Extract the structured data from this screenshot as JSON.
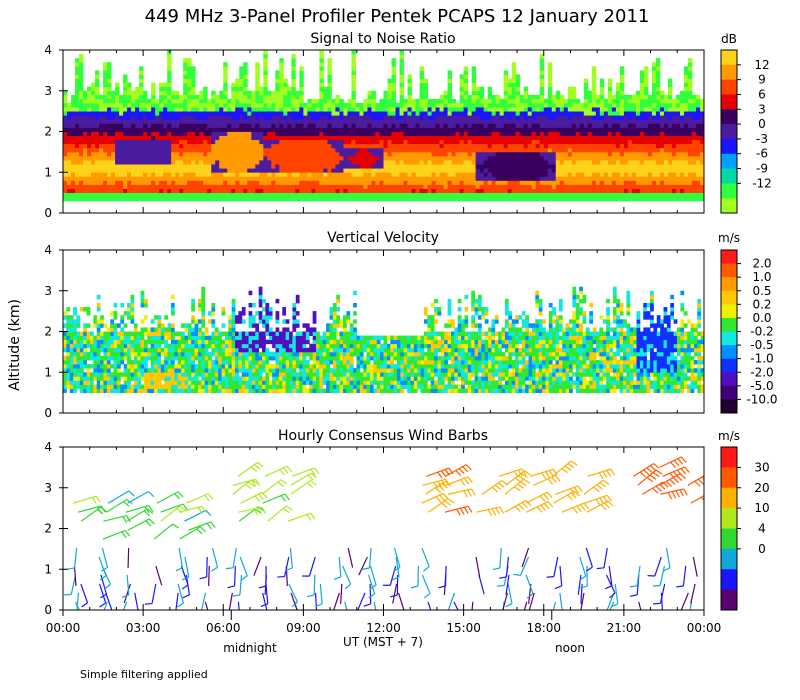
{
  "figure": {
    "title": "449 MHz 3-Panel Profiler Pentek PCAPS 12 January 2011",
    "ylabel": "Altitude (km)",
    "xlabel": "UT  (MST + 7)",
    "day_labels": [
      "midnight",
      "noon"
    ],
    "footnote": "Simple filtering applied"
  },
  "chart_data": [
    {
      "type": "heatmap",
      "title": "Signal to Noise Ratio",
      "units": "dB",
      "x_range_hours": [
        0,
        24
      ],
      "x_ticks": [
        "00:00",
        "03:00",
        "06:00",
        "09:00",
        "12:00",
        "15:00",
        "18:00",
        "21:00",
        "00:00"
      ],
      "ylim": [
        0,
        4
      ],
      "y_ticks": [
        "0",
        "1",
        "2",
        "3",
        "4"
      ],
      "colorbar_labels": [
        "12",
        "9",
        "6",
        "3",
        "0",
        "-3",
        "-6",
        "-9",
        "-12"
      ],
      "colorbar_colors": [
        "#ffd21a",
        "#ff9a00",
        "#ff4400",
        "#e60000",
        "#3a0060",
        "#4b1ca0",
        "#1a14ff",
        "#00a0ff",
        "#00d8a8",
        "#30ff40",
        "#a0ff20"
      ],
      "features": [
        {
          "x": [
            2.0,
            4.0
          ],
          "y": [
            1.2,
            1.8
          ],
          "level": "0"
        },
        {
          "x": [
            5.5,
            7.5
          ],
          "y": [
            1.0,
            2.0
          ],
          "level": "12"
        },
        {
          "x": [
            7.5,
            10.5
          ],
          "y": [
            1.0,
            1.8
          ],
          "level": "9"
        },
        {
          "x": [
            10.5,
            12.0
          ],
          "y": [
            1.1,
            1.6
          ],
          "level": "6"
        },
        {
          "x": [
            15.5,
            18.5
          ],
          "y": [
            0.8,
            1.5
          ],
          "level": "3"
        }
      ]
    },
    {
      "type": "heatmap",
      "title": "Vertical Velocity",
      "units": "m/s",
      "x_range_hours": [
        0,
        24
      ],
      "ylim": [
        0,
        4
      ],
      "y_ticks": [
        "0",
        "1",
        "2",
        "3",
        "4"
      ],
      "colorbar_labels": [
        "2.0",
        "1.0",
        "0.5",
        "0.2",
        "0.0",
        "-0.2",
        "-0.5",
        "-1.0",
        "-2.0",
        "-5.0",
        "-10.0"
      ],
      "colorbar_colors": [
        "#ff1a1a",
        "#ff5a00",
        "#ff9a00",
        "#ffc800",
        "#f0f000",
        "#30e830",
        "#10e8e0",
        "#0090ff",
        "#1030ff",
        "#5010c0",
        "#40007a",
        "#200030"
      ],
      "features": [
        {
          "x": [
            6.5,
            9.5
          ],
          "y": [
            1.5,
            3.4
          ],
          "level": "-2.0"
        },
        {
          "x": [
            21.5,
            23.0
          ],
          "y": [
            1.0,
            2.7
          ],
          "level": "-1.0"
        },
        {
          "x": [
            3.0,
            4.5
          ],
          "y": [
            0.6,
            1.0
          ],
          "level": "0.5"
        }
      ]
    },
    {
      "type": "scatter",
      "subtype": "wind_barbs",
      "title": "Hourly Consensus Wind Barbs",
      "units": "m/s",
      "x_range_hours": [
        0,
        24
      ],
      "ylim": [
        0,
        4
      ],
      "y_ticks": [
        "0",
        "1",
        "2",
        "3",
        "4"
      ],
      "colorbar_labels": [
        "30",
        "20",
        "10",
        "4",
        "0"
      ],
      "colorbar_colors": [
        "#ff1a1a",
        "#ff5a00",
        "#ffb000",
        "#b0e820",
        "#30d830",
        "#10a8d8",
        "#1a14ff",
        "#5a0070"
      ],
      "wind_regimes": [
        {
          "hours": [
            0,
            5
          ],
          "heights_km": [
            1.6,
            2.8
          ],
          "speed_ms": 8
        },
        {
          "hours": [
            6,
            9
          ],
          "heights_km": [
            2.0,
            3.3
          ],
          "speed_ms": 12
        },
        {
          "hours": [
            13.5,
            20
          ],
          "heights_km": [
            2.2,
            3.3
          ],
          "speed_ms": 18
        },
        {
          "hours": [
            21,
            23.5
          ],
          "heights_km": [
            2.6,
            3.7
          ],
          "speed_ms": 22
        },
        {
          "hours": [
            0,
            24
          ],
          "heights_km": [
            0.2,
            1.6
          ],
          "speed_ms": 4
        }
      ]
    }
  ]
}
